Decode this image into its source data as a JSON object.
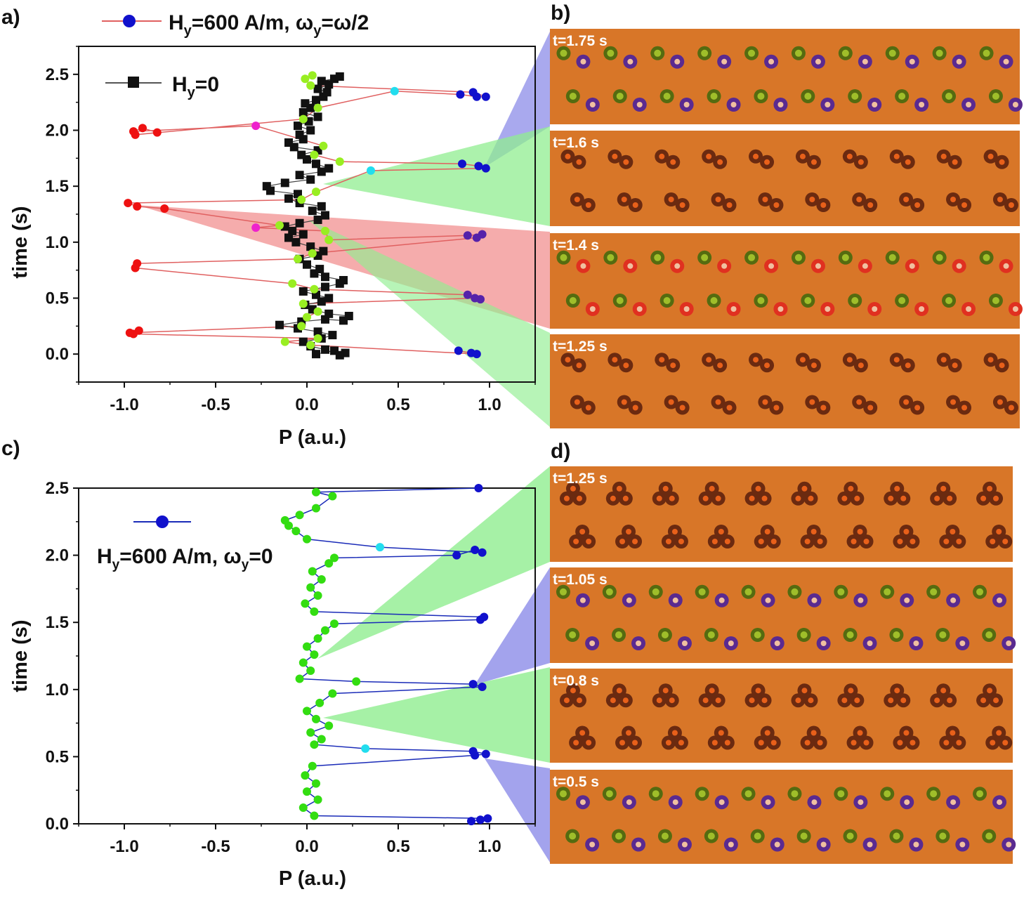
{
  "panel_labels": {
    "a": "a)",
    "b": "b)",
    "c": "c)",
    "d": "d)"
  },
  "colors": {
    "red_line": "#e06060",
    "blue_line": "#1a2bb8",
    "black_series": "#111111",
    "green_points": "#33dd11",
    "lime_points": "#99ee22",
    "red_points": "#ee1111",
    "blue_points": "#1111cc",
    "cyan_points": "#22ddee",
    "magenta_points": "#ee22cc",
    "purple_points": "#5522aa",
    "wedge_blue": "#8c8ce8",
    "wedge_green": "#90ee90",
    "wedge_red": "#f08080",
    "micro_bg": "#d87628"
  },
  "legend_a": {
    "series1": {
      "base": "H",
      "sub": "y",
      "value": "=600 A/m, ω",
      "sub2": "y",
      "tail": "=ω/2"
    },
    "series2": {
      "base": "H",
      "sub": "y",
      "tail": "=0"
    }
  },
  "legend_c": {
    "base": "H",
    "sub": "y",
    "value": "=600 A/m, ω",
    "sub2": "y",
    "tail": "=0"
  },
  "micro_b": [
    {
      "label": "t=1.75 s",
      "type": "colored-purple"
    },
    {
      "label": "t=1.6 s",
      "type": "dimers"
    },
    {
      "label": "t=1.4 s",
      "type": "colored-red"
    },
    {
      "label": "t=1.25 s",
      "type": "dimers"
    }
  ],
  "micro_d": [
    {
      "label": "t=1.25 s",
      "type": "trimers"
    },
    {
      "label": "t=1.05 s",
      "type": "colored-purple"
    },
    {
      "label": "t=0.8 s",
      "type": "trimers"
    },
    {
      "label": "t=0.5 s",
      "type": "colored-purple"
    }
  ],
  "chart_data": [
    {
      "panel": "a",
      "type": "scatter",
      "title": "",
      "xlabel": "P (a.u.)",
      "ylabel": "time (s)",
      "xlim": [
        -1.25,
        1.25
      ],
      "ylim": [
        -0.25,
        2.75
      ],
      "xticks": [
        -1.0,
        -0.5,
        0.0,
        0.5,
        1.0
      ],
      "xtick_labels": [
        "-1.0",
        "-0.5",
        "0.0",
        "0.5",
        "1.0"
      ],
      "yticks": [
        0.0,
        0.5,
        1.0,
        1.5,
        2.0,
        2.5
      ],
      "ytick_labels": [
        "0.0",
        "0.5",
        "1.0",
        "1.5",
        "2.0",
        "2.5"
      ],
      "series": [
        {
          "name": "Hy=0",
          "marker": "square",
          "color": "#111111",
          "points": [
            [
              0.05,
              0.0
            ],
            [
              0.15,
              0.03
            ],
            [
              0.21,
              0.01
            ],
            [
              0.18,
              -0.01
            ],
            [
              0.1,
              0.04
            ],
            [
              0.02,
              0.07
            ],
            [
              -0.02,
              0.11
            ],
            [
              0.08,
              0.14
            ],
            [
              0.14,
              0.17
            ],
            [
              0.06,
              0.2
            ],
            [
              -0.05,
              0.23
            ],
            [
              -0.15,
              0.26
            ],
            [
              -0.03,
              0.29
            ],
            [
              0.1,
              0.31
            ],
            [
              0.2,
              0.3
            ],
            [
              0.23,
              0.34
            ],
            [
              0.12,
              0.36
            ],
            [
              0.03,
              0.4
            ],
            [
              -0.01,
              0.44
            ],
            [
              0.08,
              0.47
            ],
            [
              0.12,
              0.5
            ],
            [
              0.05,
              0.53
            ],
            [
              -0.02,
              0.56
            ],
            [
              0.1,
              0.6
            ],
            [
              0.18,
              0.63
            ],
            [
              0.2,
              0.66
            ],
            [
              0.1,
              0.69
            ],
            [
              0.04,
              0.72
            ],
            [
              0.07,
              0.76
            ],
            [
              0.0,
              0.8
            ],
            [
              -0.04,
              0.85
            ],
            [
              0.06,
              0.88
            ],
            [
              0.09,
              0.92
            ],
            [
              0.02,
              0.96
            ],
            [
              -0.06,
              1.0
            ],
            [
              -0.1,
              1.04
            ],
            [
              -0.02,
              1.07
            ],
            [
              -0.08,
              1.1
            ],
            [
              -0.12,
              1.14
            ],
            [
              -0.04,
              1.17
            ],
            [
              0.06,
              1.2
            ],
            [
              0.1,
              1.24
            ],
            [
              0.03,
              1.28
            ],
            [
              0.08,
              1.32
            ],
            [
              -0.04,
              1.35
            ],
            [
              -0.1,
              1.39
            ],
            [
              -0.05,
              1.43
            ],
            [
              -0.2,
              1.46
            ],
            [
              -0.22,
              1.5
            ],
            [
              -0.12,
              1.53
            ],
            [
              0.02,
              1.56
            ],
            [
              -0.04,
              1.6
            ],
            [
              0.08,
              1.63
            ],
            [
              0.12,
              1.66
            ],
            [
              0.05,
              1.7
            ],
            [
              0.0,
              1.74
            ],
            [
              -0.03,
              1.78
            ],
            [
              0.06,
              1.82
            ],
            [
              -0.07,
              1.85
            ],
            [
              -0.1,
              1.89
            ],
            [
              -0.02,
              1.92
            ],
            [
              -0.04,
              1.96
            ],
            [
              0.02,
              2.0
            ],
            [
              -0.05,
              2.04
            ],
            [
              0.01,
              2.08
            ],
            [
              0.06,
              2.12
            ],
            [
              -0.02,
              2.16
            ],
            [
              0.02,
              2.2
            ],
            [
              -0.01,
              2.24
            ],
            [
              0.05,
              2.27
            ],
            [
              0.09,
              2.3
            ],
            [
              0.11,
              2.34
            ],
            [
              0.06,
              2.37
            ],
            [
              0.12,
              2.41
            ],
            [
              0.08,
              2.44
            ],
            [
              0.15,
              2.46
            ],
            [
              0.18,
              2.48
            ]
          ]
        },
        {
          "name": "Hy=600 A/m, ωy=ω/2",
          "marker": "circle",
          "line_color": "#e06060",
          "points": [
            [
              0.83,
              0.03,
              "#1111cc"
            ],
            [
              0.9,
              0.01,
              "#1111cc"
            ],
            [
              0.93,
              0.0,
              "#1111cc"
            ],
            [
              0.02,
              0.08,
              "#99ee22"
            ],
            [
              -0.12,
              0.11,
              "#99ee22"
            ],
            [
              0.06,
              0.14,
              "#99ee22"
            ],
            [
              -0.95,
              0.18,
              "#ee1111"
            ],
            [
              -0.92,
              0.21,
              "#ee1111"
            ],
            [
              -0.97,
              0.19,
              "#ee1111"
            ],
            [
              -0.03,
              0.25,
              "#99ee22"
            ],
            [
              0.0,
              0.33,
              "#99ee22"
            ],
            [
              0.06,
              0.38,
              "#99ee22"
            ],
            [
              -0.02,
              0.45,
              "#99ee22"
            ],
            [
              0.92,
              0.5,
              "#5522aa"
            ],
            [
              0.95,
              0.49,
              "#5522aa"
            ],
            [
              0.88,
              0.53,
              "#5522aa"
            ],
            [
              0.04,
              0.58,
              "#99ee22"
            ],
            [
              -0.08,
              0.63,
              "#99ee22"
            ],
            [
              -0.94,
              0.77,
              "#ee1111"
            ],
            [
              -0.93,
              0.81,
              "#ee1111"
            ],
            [
              -0.05,
              0.85,
              "#99ee22"
            ],
            [
              0.03,
              0.9,
              "#99ee22"
            ],
            [
              0.93,
              1.04,
              "#5522aa"
            ],
            [
              0.96,
              1.07,
              "#5522aa"
            ],
            [
              0.88,
              1.06,
              "#5522aa"
            ],
            [
              0.12,
              1.02,
              "#99ee22"
            ],
            [
              0.1,
              1.1,
              "#99ee22"
            ],
            [
              -0.28,
              1.13,
              "#ee22cc"
            ],
            [
              -0.15,
              1.15,
              "#99ee22"
            ],
            [
              -0.78,
              1.3,
              "#ee1111"
            ],
            [
              -0.93,
              1.32,
              "#ee1111"
            ],
            [
              -0.98,
              1.35,
              "#ee1111"
            ],
            [
              -0.03,
              1.38,
              "#99ee22"
            ],
            [
              0.05,
              1.45,
              "#99ee22"
            ],
            [
              0.35,
              1.64,
              "#22ddee"
            ],
            [
              0.98,
              1.66,
              "#1111cc"
            ],
            [
              0.94,
              1.68,
              "#1111cc"
            ],
            [
              0.85,
              1.7,
              "#1111cc"
            ],
            [
              0.18,
              1.72,
              "#99ee22"
            ],
            [
              0.04,
              1.78,
              "#99ee22"
            ],
            [
              0.09,
              1.86,
              "#99ee22"
            ],
            [
              -0.28,
              2.04,
              "#ee22cc"
            ],
            [
              -0.95,
              1.99,
              "#ee1111"
            ],
            [
              -0.9,
              2.02,
              "#ee1111"
            ],
            [
              -0.82,
              1.98,
              "#ee1111"
            ],
            [
              -0.94,
              1.96,
              "#ee1111"
            ],
            [
              -0.02,
              2.1,
              "#99ee22"
            ],
            [
              0.06,
              2.2,
              "#99ee22"
            ],
            [
              0.48,
              2.35,
              "#22ddee"
            ],
            [
              0.84,
              2.32,
              "#1111cc"
            ],
            [
              0.93,
              2.3,
              "#1111cc"
            ],
            [
              0.98,
              2.3,
              "#1111cc"
            ],
            [
              0.91,
              2.34,
              "#1111cc"
            ],
            [
              0.02,
              2.4,
              "#99ee22"
            ],
            [
              -0.01,
              2.46,
              "#99ee22"
            ],
            [
              0.03,
              2.49,
              "#99ee22"
            ]
          ]
        }
      ],
      "legend": [
        "Hy=600 A/m, ωy=ω/2",
        "Hy=0"
      ]
    },
    {
      "panel": "c",
      "type": "scatter",
      "title": "",
      "xlabel": "P (a.u.)",
      "ylabel": "time (s)",
      "xlim": [
        -1.25,
        1.25
      ],
      "ylim": [
        0.0,
        2.5
      ],
      "xticks": [
        -1.0,
        -0.5,
        0.0,
        0.5,
        1.0
      ],
      "xtick_labels": [
        "-1.0",
        "-0.5",
        "0.0",
        "0.5",
        "1.0"
      ],
      "yticks": [
        0.0,
        0.5,
        1.0,
        1.5,
        2.0,
        2.5
      ],
      "ytick_labels": [
        "0.0",
        "0.5",
        "1.0",
        "1.5",
        "2.0",
        "2.5"
      ],
      "series": [
        {
          "name": "Hy=600 A/m, ωy=0",
          "marker": "circle",
          "line_color": "#1a2bb8",
          "points": [
            [
              0.9,
              0.02,
              "#1111cc"
            ],
            [
              0.95,
              0.03,
              "#1111cc"
            ],
            [
              0.99,
              0.04,
              "#1111cc"
            ],
            [
              0.04,
              0.06,
              "#33dd11"
            ],
            [
              -0.02,
              0.12,
              "#33dd11"
            ],
            [
              0.06,
              0.18,
              "#33dd11"
            ],
            [
              0.0,
              0.24,
              "#33dd11"
            ],
            [
              0.05,
              0.3,
              "#33dd11"
            ],
            [
              -0.01,
              0.36,
              "#33dd11"
            ],
            [
              0.03,
              0.43,
              "#33dd11"
            ],
            [
              0.92,
              0.51,
              "#1111cc"
            ],
            [
              0.98,
              0.52,
              "#1111cc"
            ],
            [
              0.91,
              0.54,
              "#1111cc"
            ],
            [
              0.32,
              0.56,
              "#22ddee"
            ],
            [
              0.04,
              0.59,
              "#33dd11"
            ],
            [
              0.08,
              0.63,
              "#33dd11"
            ],
            [
              0.02,
              0.68,
              "#33dd11"
            ],
            [
              0.12,
              0.73,
              "#33dd11"
            ],
            [
              0.05,
              0.78,
              "#33dd11"
            ],
            [
              0.0,
              0.84,
              "#33dd11"
            ],
            [
              0.07,
              0.9,
              "#33dd11"
            ],
            [
              0.14,
              0.97,
              "#33dd11"
            ],
            [
              0.96,
              1.02,
              "#1111cc"
            ],
            [
              0.91,
              1.04,
              "#1111cc"
            ],
            [
              0.27,
              1.06,
              "#33dd11"
            ],
            [
              -0.04,
              1.08,
              "#33dd11"
            ],
            [
              0.02,
              1.14,
              "#33dd11"
            ],
            [
              -0.02,
              1.2,
              "#33dd11"
            ],
            [
              0.04,
              1.26,
              "#33dd11"
            ],
            [
              0.0,
              1.32,
              "#33dd11"
            ],
            [
              0.06,
              1.38,
              "#33dd11"
            ],
            [
              0.1,
              1.44,
              "#33dd11"
            ],
            [
              0.15,
              1.49,
              "#33dd11"
            ],
            [
              0.95,
              1.52,
              "#1111cc"
            ],
            [
              0.97,
              1.54,
              "#1111cc"
            ],
            [
              0.04,
              1.58,
              "#33dd11"
            ],
            [
              -0.01,
              1.64,
              "#33dd11"
            ],
            [
              0.06,
              1.7,
              "#33dd11"
            ],
            [
              0.02,
              1.76,
              "#33dd11"
            ],
            [
              0.08,
              1.82,
              "#33dd11"
            ],
            [
              0.03,
              1.88,
              "#33dd11"
            ],
            [
              0.12,
              1.94,
              "#33dd11"
            ],
            [
              0.15,
              1.98,
              "#33dd11"
            ],
            [
              0.82,
              2.0,
              "#1111cc"
            ],
            [
              0.92,
              2.04,
              "#1111cc"
            ],
            [
              0.96,
              2.02,
              "#1111cc"
            ],
            [
              0.4,
              2.06,
              "#22ddee"
            ],
            [
              0.0,
              2.12,
              "#33dd11"
            ],
            [
              -0.06,
              2.18,
              "#33dd11"
            ],
            [
              -0.1,
              2.22,
              "#33dd11"
            ],
            [
              -0.12,
              2.26,
              "#33dd11"
            ],
            [
              -0.04,
              2.3,
              "#33dd11"
            ],
            [
              0.05,
              2.35,
              "#33dd11"
            ],
            [
              0.14,
              2.44,
              "#33dd11"
            ],
            [
              0.05,
              2.47,
              "#33dd11"
            ],
            [
              0.94,
              2.5,
              "#1111cc"
            ]
          ]
        }
      ],
      "legend": [
        "Hy=600 A/m, ωy=0"
      ]
    }
  ]
}
